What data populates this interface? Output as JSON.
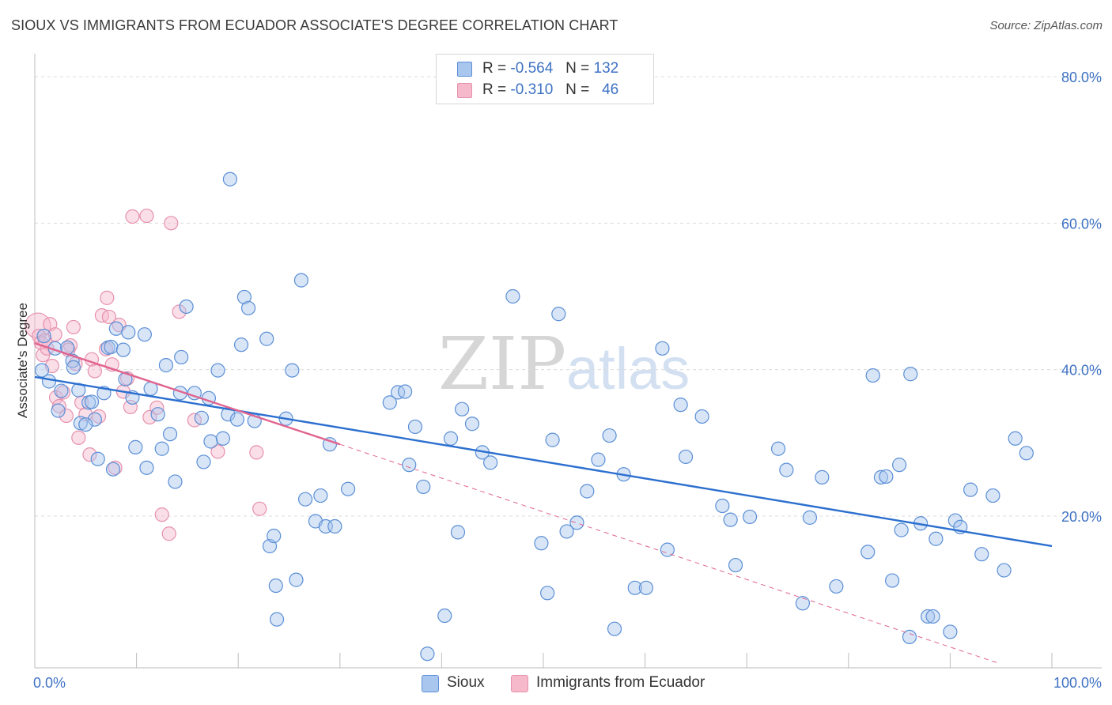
{
  "header": {
    "title": "SIOUX VS IMMIGRANTS FROM ECUADOR ASSOCIATE'S DEGREE CORRELATION CHART",
    "source": "Source: ZipAtlas.com"
  },
  "legend": {
    "sioux": {
      "r_label": "R =",
      "r_value": "-0.564",
      "n_label": "N =",
      "n_value": "132"
    },
    "ecuador": {
      "r_label": "R =",
      "r_value": "-0.310",
      "n_label": "N =",
      "n_value": "46"
    }
  },
  "bottom_legend": {
    "sioux": "Sioux",
    "ecuador": "Immigrants from Ecuador"
  },
  "watermark": {
    "zip": "ZIP",
    "atlas": "atlas"
  },
  "colors": {
    "sioux_fill": "#a9c6ee",
    "sioux_stroke": "#5b8fd6",
    "sioux_line": "#2b6fcf",
    "ecuador_fill": "#f6b9cb",
    "ecuador_stroke": "#e691ad",
    "ecuador_line": "#e0648f",
    "grid": "#dcdcdc",
    "tick_text": "#3e72c4"
  },
  "chart_data": {
    "type": "scatter",
    "title": "SIOUX VS IMMIGRANTS FROM ECUADOR ASSOCIATE'S DEGREE CORRELATION CHART",
    "xlabel": "",
    "ylabel": "Associate's Degree",
    "xlim": [
      0,
      100
    ],
    "ylim": [
      0,
      82
    ],
    "x_tick_labels": [
      "0.0%",
      "100.0%"
    ],
    "y_ticks": [
      20,
      40,
      60,
      80
    ],
    "y_tick_labels": [
      "20.0%",
      "40.0%",
      "60.0%",
      "80.0%"
    ],
    "grid": true,
    "legend_position": "top-center",
    "series": [
      {
        "name": "Sioux",
        "points": [
          [
            0.7,
            39.9
          ],
          [
            0.9,
            44.6
          ],
          [
            1.4,
            38.4
          ],
          [
            2.0,
            42.9
          ],
          [
            2.3,
            34.4
          ],
          [
            2.6,
            37.1
          ],
          [
            3.2,
            43.0
          ],
          [
            3.7,
            41.2
          ],
          [
            3.8,
            40.3
          ],
          [
            4.3,
            37.2
          ],
          [
            4.5,
            32.7
          ],
          [
            5.3,
            35.5
          ],
          [
            5.6,
            35.6
          ],
          [
            5.9,
            33.2
          ],
          [
            6.2,
            27.8
          ],
          [
            6.8,
            36.8
          ],
          [
            7.2,
            43.0
          ],
          [
            7.5,
            43.1
          ],
          [
            7.7,
            26.4
          ],
          [
            8.0,
            45.6
          ],
          [
            8.7,
            42.7
          ],
          [
            8.9,
            38.7
          ],
          [
            9.2,
            45.1
          ],
          [
            9.6,
            36.2
          ],
          [
            9.9,
            29.4
          ],
          [
            10.8,
            44.8
          ],
          [
            11.0,
            26.6
          ],
          [
            11.4,
            37.4
          ],
          [
            12.1,
            33.9
          ],
          [
            12.5,
            29.2
          ],
          [
            12.9,
            40.6
          ],
          [
            13.3,
            31.2
          ],
          [
            13.8,
            24.7
          ],
          [
            14.3,
            36.8
          ],
          [
            14.4,
            41.7
          ],
          [
            14.9,
            48.6
          ],
          [
            19.2,
            66.0
          ],
          [
            15.7,
            36.8
          ],
          [
            16.4,
            33.4
          ],
          [
            16.6,
            27.4
          ],
          [
            17.1,
            36.1
          ],
          [
            17.3,
            30.2
          ],
          [
            18.0,
            39.9
          ],
          [
            18.5,
            30.6
          ],
          [
            19.0,
            33.9
          ],
          [
            19.9,
            33.2
          ],
          [
            20.3,
            43.4
          ],
          [
            20.6,
            49.9
          ],
          [
            21.0,
            48.4
          ],
          [
            21.6,
            33.0
          ],
          [
            22.8,
            44.2
          ],
          [
            23.1,
            15.9
          ],
          [
            23.5,
            17.3
          ],
          [
            23.7,
            10.5
          ],
          [
            24.7,
            33.3
          ],
          [
            25.3,
            39.9
          ],
          [
            25.7,
            11.3
          ],
          [
            26.2,
            52.2
          ],
          [
            26.6,
            22.3
          ],
          [
            27.6,
            19.3
          ],
          [
            28.1,
            22.8
          ],
          [
            28.6,
            18.6
          ],
          [
            29.0,
            29.8
          ],
          [
            23.8,
            5.9
          ],
          [
            30.8,
            23.7
          ],
          [
            34.9,
            35.5
          ],
          [
            35.7,
            36.9
          ],
          [
            36.4,
            37.0
          ],
          [
            36.8,
            27.0
          ],
          [
            37.4,
            32.2
          ],
          [
            38.2,
            24.0
          ],
          [
            38.6,
            1.2
          ],
          [
            40.3,
            6.4
          ],
          [
            40.9,
            30.6
          ],
          [
            41.6,
            17.8
          ],
          [
            42.0,
            34.6
          ],
          [
            43.0,
            32.6
          ],
          [
            44.0,
            28.7
          ],
          [
            44.8,
            27.3
          ],
          [
            47.0,
            50.0
          ],
          [
            49.8,
            16.3
          ],
          [
            50.4,
            9.5
          ],
          [
            50.9,
            30.4
          ],
          [
            51.5,
            47.6
          ],
          [
            52.3,
            17.9
          ],
          [
            53.3,
            19.1
          ],
          [
            54.3,
            23.4
          ],
          [
            55.4,
            27.7
          ],
          [
            56.5,
            31.0
          ],
          [
            57.0,
            4.6
          ],
          [
            57.9,
            25.7
          ],
          [
            59.0,
            10.2
          ],
          [
            60.1,
            10.2
          ],
          [
            61.7,
            42.9
          ],
          [
            62.2,
            15.4
          ],
          [
            63.5,
            35.2
          ],
          [
            64.0,
            28.1
          ],
          [
            65.6,
            33.6
          ],
          [
            67.6,
            21.4
          ],
          [
            68.4,
            19.5
          ],
          [
            68.9,
            13.3
          ],
          [
            70.3,
            19.9
          ],
          [
            73.1,
            29.2
          ],
          [
            73.9,
            26.3
          ],
          [
            75.5,
            8.1
          ],
          [
            76.2,
            19.8
          ],
          [
            77.4,
            25.3
          ],
          [
            78.8,
            10.4
          ],
          [
            81.9,
            15.1
          ],
          [
            82.4,
            39.2
          ],
          [
            83.2,
            25.3
          ],
          [
            83.7,
            25.4
          ],
          [
            84.3,
            11.2
          ],
          [
            85.0,
            27.0
          ],
          [
            85.2,
            18.1
          ],
          [
            86.1,
            39.4
          ],
          [
            87.1,
            19.0
          ],
          [
            87.8,
            6.3
          ],
          [
            88.3,
            6.3
          ],
          [
            88.6,
            16.9
          ],
          [
            90.5,
            19.4
          ],
          [
            91.0,
            18.5
          ],
          [
            92.0,
            23.6
          ],
          [
            93.1,
            14.8
          ],
          [
            94.2,
            22.8
          ],
          [
            95.3,
            12.6
          ],
          [
            96.4,
            30.6
          ],
          [
            97.5,
            28.6
          ],
          [
            90.0,
            4.2
          ],
          [
            86.0,
            3.5
          ],
          [
            29.5,
            18.6
          ],
          [
            5.0,
            32.5
          ]
        ]
      },
      {
        "name": "Immigrants from Ecuador",
        "points": [
          [
            0.3,
            46.0
          ],
          [
            0.4,
            44.6
          ],
          [
            0.6,
            43.7
          ],
          [
            0.8,
            42.0
          ],
          [
            1.2,
            42.9
          ],
          [
            1.5,
            46.2
          ],
          [
            1.7,
            40.5
          ],
          [
            2.0,
            44.8
          ],
          [
            2.1,
            36.2
          ],
          [
            2.4,
            35.0
          ],
          [
            2.8,
            36.9
          ],
          [
            3.1,
            33.7
          ],
          [
            3.5,
            43.3
          ],
          [
            3.8,
            45.8
          ],
          [
            4.0,
            40.8
          ],
          [
            4.3,
            30.7
          ],
          [
            4.6,
            35.5
          ],
          [
            5.0,
            33.9
          ],
          [
            5.4,
            28.4
          ],
          [
            5.6,
            41.4
          ],
          [
            5.9,
            39.8
          ],
          [
            6.3,
            33.6
          ],
          [
            6.6,
            47.4
          ],
          [
            7.1,
            49.8
          ],
          [
            7.3,
            47.2
          ],
          [
            7.6,
            40.7
          ],
          [
            7.9,
            26.6
          ],
          [
            8.3,
            46.1
          ],
          [
            8.7,
            37.0
          ],
          [
            9.1,
            38.8
          ],
          [
            9.4,
            34.9
          ],
          [
            11.3,
            33.5
          ],
          [
            12.0,
            34.8
          ],
          [
            12.5,
            20.2
          ],
          [
            13.2,
            17.6
          ],
          [
            14.2,
            47.9
          ],
          [
            15.7,
            33.1
          ],
          [
            18.0,
            28.8
          ],
          [
            21.8,
            28.7
          ],
          [
            22.1,
            21.0
          ],
          [
            11.0,
            61.0
          ],
          [
            13.4,
            60.0
          ],
          [
            7.0,
            42.8
          ],
          [
            9.6,
            60.9
          ],
          [
            1.0,
            44.0
          ],
          [
            3.3,
            42.7
          ]
        ]
      }
    ],
    "trendlines": [
      {
        "series": "Sioux",
        "x": [
          0,
          100
        ],
        "y": [
          39.0,
          15.9
        ],
        "style": "solid"
      },
      {
        "series": "Immigrants from Ecuador",
        "x": [
          0,
          30
        ],
        "y": [
          43.6,
          29.8
        ],
        "style": "solid"
      },
      {
        "series": "Immigrants from Ecuador",
        "x": [
          30,
          100
        ],
        "y": [
          29.8,
          -2.5
        ],
        "style": "dashed"
      }
    ]
  }
}
